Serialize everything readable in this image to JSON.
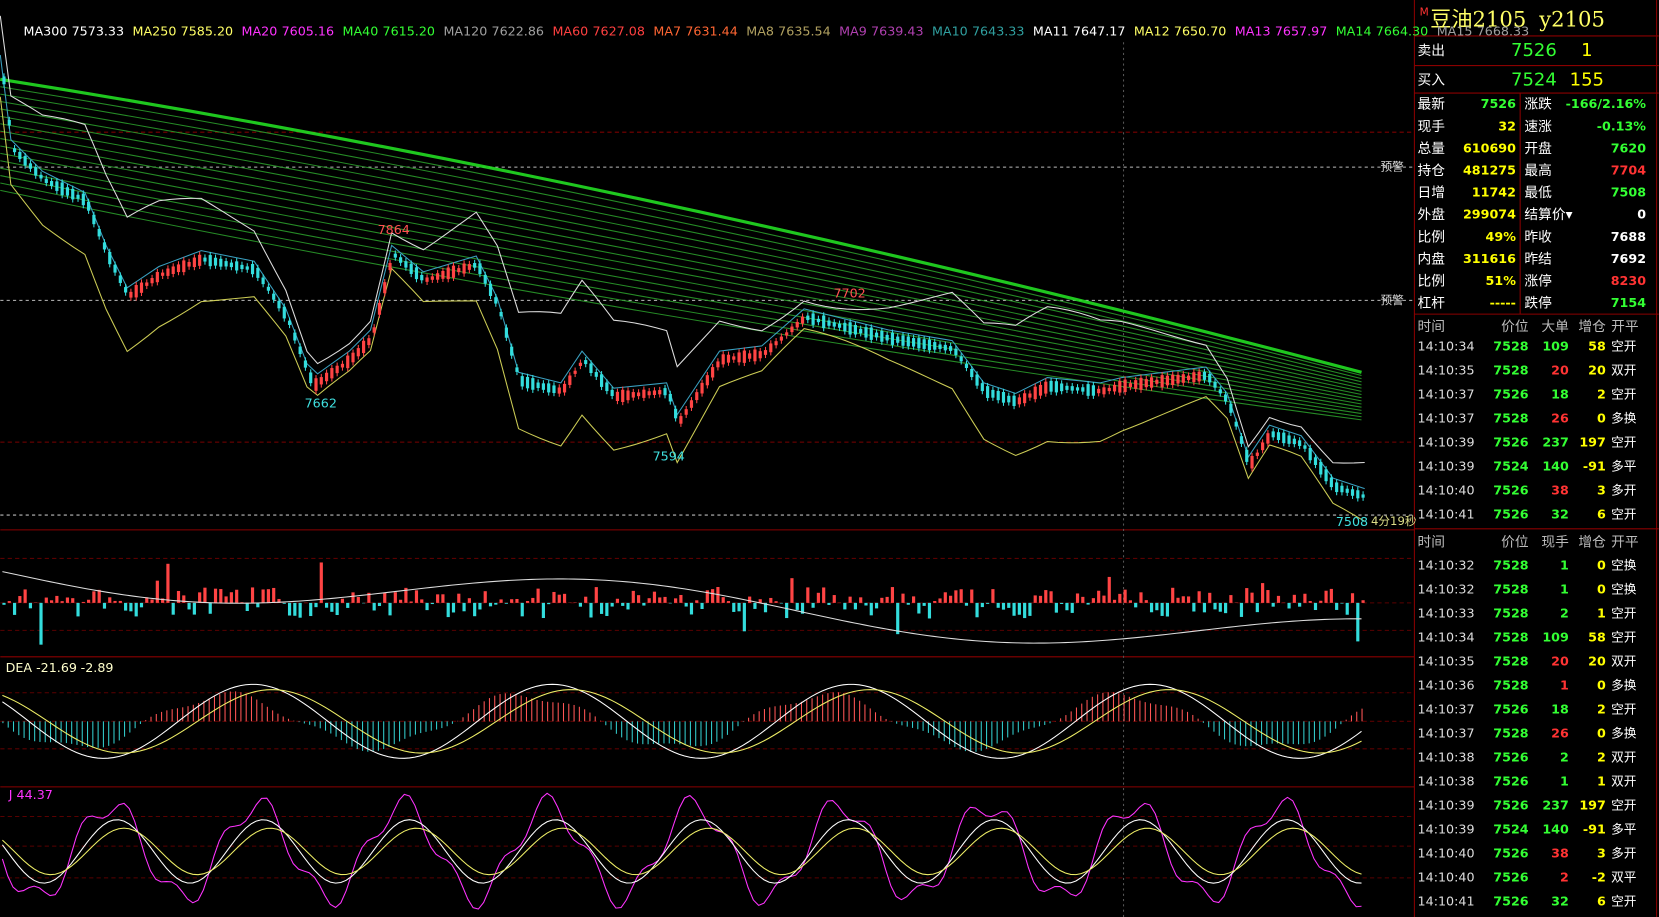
{
  "ma_legend": [
    {
      "name": "MA300",
      "value": "7573.33",
      "color": "#ffffff"
    },
    {
      "name": "MA250",
      "value": "7585.20",
      "color": "#ffff66"
    },
    {
      "name": "MA20",
      "value": "7605.16",
      "color": "#ff33ff"
    },
    {
      "name": "MA40",
      "value": "7615.20",
      "color": "#33ff33"
    },
    {
      "name": "MA120",
      "value": "7622.86",
      "color": "#a0a0a0"
    },
    {
      "name": "MA60",
      "value": "7627.08",
      "color": "#ff4040"
    },
    {
      "name": "MA7",
      "value": "7631.44",
      "color": "#ff6633"
    },
    {
      "name": "MA8",
      "value": "7635.54",
      "color": "#b0a060"
    },
    {
      "name": "MA9",
      "value": "7639.43",
      "color": "#b040b0"
    },
    {
      "name": "MA10",
      "value": "7643.33",
      "color": "#30a0a0"
    },
    {
      "name": "MA11",
      "value": "7647.17",
      "color": "#ffffff"
    },
    {
      "name": "MA12",
      "value": "7650.70",
      "color": "#ffff66"
    },
    {
      "name": "MA13",
      "value": "7657.97",
      "color": "#ff33ff"
    },
    {
      "name": "MA14",
      "value": "7664.30",
      "color": "#33ff33"
    },
    {
      "name": "MA15",
      "value": "7668.33",
      "color": "#a0a0a0"
    }
  ],
  "annotations": [
    {
      "text": "7864",
      "color": "#ff5050"
    },
    {
      "text": "7662",
      "color": "#40e0e0"
    },
    {
      "text": "7594",
      "color": "#40e0e0"
    },
    {
      "text": "7702",
      "color": "#ff5050"
    },
    {
      "text": "7508",
      "color": "#40e0e0"
    }
  ],
  "alerts": [
    "预警",
    "预警"
  ],
  "countdown": "4分19秒",
  "macd_label": {
    "name": "DEA -21.69",
    "value": "-2.89"
  },
  "kdj_label": "J 44.37",
  "quote": {
    "flag": "M",
    "name": "豆油2105",
    "code": "y2105",
    "ask": {
      "label": "卖出",
      "price": "7526",
      "volume": "1"
    },
    "bid": {
      "label": "买入",
      "price": "7524",
      "volume": "155"
    },
    "stats": [
      [
        {
          "label": "最新",
          "value": "7526",
          "color": "#33ff33"
        },
        {
          "label": "涨跌",
          "value": "-166/2.16%",
          "color": "#33ff33"
        }
      ],
      [
        {
          "label": "现手",
          "value": "32",
          "color": "#ffff00"
        },
        {
          "label": "速涨",
          "value": "-0.13%",
          "color": "#33ff33"
        }
      ],
      [
        {
          "label": "总量",
          "value": "610690",
          "color": "#ffff00"
        },
        {
          "label": "开盘",
          "value": "7620",
          "color": "#33ff33"
        }
      ],
      [
        {
          "label": "持仓",
          "value": "481275",
          "color": "#ffff00"
        },
        {
          "label": "最高",
          "value": "7704",
          "color": "#ff3333"
        }
      ],
      [
        {
          "label": "日增",
          "value": "11742",
          "color": "#ffff00"
        },
        {
          "label": "最低",
          "value": "7508",
          "color": "#33ff33"
        }
      ],
      [
        {
          "label": "外盘",
          "value": "299074",
          "color": "#ffff00"
        },
        {
          "label": "结算价▾",
          "value": "0",
          "color": "#ffffff"
        }
      ],
      [
        {
          "label": "比例",
          "value": "49%",
          "color": "#ffff00"
        },
        {
          "label": "昨收",
          "value": "7688",
          "color": "#ffffff"
        }
      ],
      [
        {
          "label": "内盘",
          "value": "311616",
          "color": "#ffff00"
        },
        {
          "label": "昨结",
          "value": "7692",
          "color": "#ffffff"
        }
      ],
      [
        {
          "label": "比例",
          "value": "51%",
          "color": "#ffff00"
        },
        {
          "label": "涨停",
          "value": "8230",
          "color": "#ff3333"
        }
      ],
      [
        {
          "label": "杠杆",
          "value": "-----",
          "color": "#ffff00"
        },
        {
          "label": "跌停",
          "value": "7154",
          "color": "#33ff33"
        }
      ]
    ]
  },
  "big_trades": {
    "header": [
      "时间",
      "价位",
      "大单",
      "增仓",
      "开平"
    ],
    "rows": [
      [
        "14:10:34",
        "7528",
        "109",
        "58",
        "空开"
      ],
      [
        "14:10:35",
        "7528",
        "20",
        "20",
        "双开"
      ],
      [
        "14:10:37",
        "7526",
        "18",
        "2",
        "空开"
      ],
      [
        "14:10:37",
        "7528",
        "26",
        "0",
        "多换"
      ],
      [
        "14:10:39",
        "7526",
        "237",
        "197",
        "空开"
      ],
      [
        "14:10:39",
        "7524",
        "140",
        "-91",
        "多平"
      ],
      [
        "14:10:40",
        "7526",
        "38",
        "3",
        "多开"
      ],
      [
        "14:10:41",
        "7526",
        "32",
        "6",
        "空开"
      ]
    ],
    "volume_colors": [
      "#33ff33",
      "#ff3333",
      "#33ff33",
      "#ff3333",
      "#33ff33",
      "#33ff33",
      "#ff3333",
      "#33ff33"
    ]
  },
  "ticks": {
    "header": [
      "时间",
      "价位",
      "现手",
      "增仓",
      "开平"
    ],
    "rows": [
      [
        "14:10:32",
        "7528",
        "1",
        "0",
        "空换"
      ],
      [
        "14:10:32",
        "7528",
        "1",
        "0",
        "空换"
      ],
      [
        "14:10:33",
        "7528",
        "2",
        "1",
        "空开"
      ],
      [
        "14:10:34",
        "7528",
        "109",
        "58",
        "空开"
      ],
      [
        "14:10:35",
        "7528",
        "20",
        "20",
        "双开"
      ],
      [
        "14:10:36",
        "7528",
        "1",
        "0",
        "多换"
      ],
      [
        "14:10:37",
        "7526",
        "18",
        "2",
        "空开"
      ],
      [
        "14:10:37",
        "7528",
        "26",
        "0",
        "多换"
      ],
      [
        "14:10:38",
        "7526",
        "2",
        "2",
        "双开"
      ],
      [
        "14:10:38",
        "7526",
        "1",
        "1",
        "双开"
      ],
      [
        "14:10:39",
        "7526",
        "237",
        "197",
        "空开"
      ],
      [
        "14:10:39",
        "7524",
        "140",
        "-91",
        "多平"
      ],
      [
        "14:10:40",
        "7526",
        "38",
        "3",
        "多开"
      ],
      [
        "14:10:40",
        "7526",
        "2",
        "-2",
        "双平"
      ],
      [
        "14:10:41",
        "7526",
        "32",
        "6",
        "空开"
      ]
    ],
    "volume_colors": [
      "#33ff33",
      "#33ff33",
      "#33ff33",
      "#33ff33",
      "#ff3333",
      "#ff3333",
      "#33ff33",
      "#ff3333",
      "#33ff33",
      "#33ff33",
      "#33ff33",
      "#33ff33",
      "#ff3333",
      "#ff3333",
      "#33ff33"
    ]
  }
}
